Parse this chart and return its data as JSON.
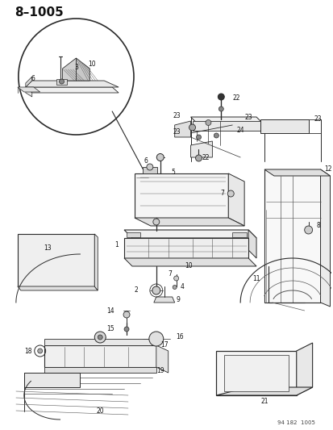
{
  "title": "8–1005",
  "footer": "94 182  1005",
  "bg_color": "#ffffff",
  "fig_width": 4.14,
  "fig_height": 5.33,
  "dpi": 100
}
